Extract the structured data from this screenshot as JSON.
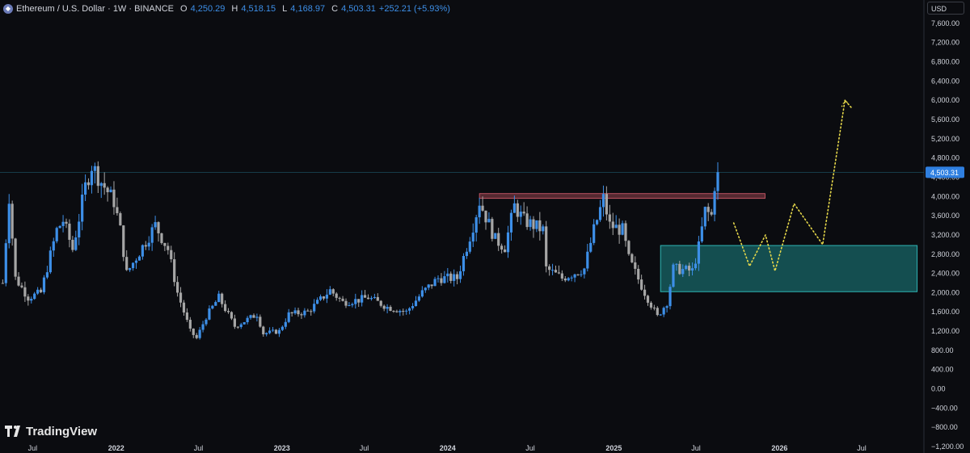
{
  "header": {
    "icon": "ethereum-icon",
    "symbol_text": "Ethereum / U.S. Dollar · 1W · BINANCE",
    "open_label": "O",
    "open_value": "4,250.29",
    "high_label": "H",
    "high_value": "4,518.15",
    "low_label": "L",
    "low_value": "4,168.97",
    "close_label": "C",
    "close_value": "4,503.31",
    "change": "+252.21 (+5.93%)"
  },
  "currency_button": "USD",
  "branding": {
    "text": "TradingView",
    "icon": "tradingview-logo-icon"
  },
  "colors": {
    "background": "#0b0c10",
    "up": "#3d8fe8",
    "down": "#a6a6a6",
    "zone": "#1e8f8f",
    "resistance": "#e06070",
    "projection": "#e6d84a",
    "price_tag": "#2f7fe0"
  },
  "chart_data": {
    "type": "candlestick",
    "symbol": "ETHUSD",
    "timeframe": "1W",
    "ylim": [
      -1200,
      7800
    ],
    "y_ticks": [
      "7,600.00",
      "7,200.00",
      "6,800.00",
      "6,400.00",
      "6,000.00",
      "5,600.00",
      "5,200.00",
      "4,800.00",
      "4,400.00",
      "4,000.00",
      "3,600.00",
      "3,200.00",
      "2,800.00",
      "2,400.00",
      "2,000.00",
      "1,600.00",
      "1,200.00",
      "800.00",
      "400.00",
      "0.00",
      "−400.00",
      "−800.00",
      "−1,200.00"
    ],
    "y_tick_values": [
      7600,
      7200,
      6800,
      6400,
      6000,
      5600,
      5200,
      4800,
      4400,
      4000,
      3600,
      3200,
      2800,
      2400,
      2000,
      1600,
      1200,
      800,
      400,
      0,
      -400,
      -800,
      -1200
    ],
    "x_ticks": [
      "Jul",
      "2022",
      "Jul",
      "2023",
      "Jul",
      "2024",
      "Jul",
      "2025",
      "Jul",
      "2026",
      "Jul"
    ],
    "x_tick_dates": [
      "2021-07-01",
      "2022-01-01",
      "2022-07-01",
      "2023-01-01",
      "2023-07-01",
      "2024-01-01",
      "2024-07-01",
      "2025-01-01",
      "2025-07-01",
      "2026-01-01",
      "2026-07-01"
    ],
    "x_range": [
      "2021-04-20",
      "2026-11-15"
    ],
    "last_price_label": "4,503.31",
    "last_price": 4503.31,
    "anchors": [
      {
        "date": "2021-04-26",
        "price": 2200
      },
      {
        "date": "2021-05-10",
        "price": 4000
      },
      {
        "date": "2021-05-24",
        "price": 2300
      },
      {
        "date": "2021-06-21",
        "price": 1900
      },
      {
        "date": "2021-07-19",
        "price": 2000
      },
      {
        "date": "2021-08-23",
        "price": 3300
      },
      {
        "date": "2021-09-06",
        "price": 3500
      },
      {
        "date": "2021-09-27",
        "price": 2900
      },
      {
        "date": "2021-10-25",
        "price": 4200
      },
      {
        "date": "2021-11-08",
        "price": 4650
      },
      {
        "date": "2021-11-29",
        "price": 4300
      },
      {
        "date": "2021-12-27",
        "price": 3900
      },
      {
        "date": "2022-01-10",
        "price": 3300
      },
      {
        "date": "2022-01-24",
        "price": 2400
      },
      {
        "date": "2022-03-28",
        "price": 3400
      },
      {
        "date": "2022-04-25",
        "price": 2900
      },
      {
        "date": "2022-05-16",
        "price": 2000
      },
      {
        "date": "2022-06-13",
        "price": 1200
      },
      {
        "date": "2022-06-27",
        "price": 1050
      },
      {
        "date": "2022-07-18",
        "price": 1500
      },
      {
        "date": "2022-08-15",
        "price": 1900
      },
      {
        "date": "2022-09-19",
        "price": 1300
      },
      {
        "date": "2022-11-07",
        "price": 1550
      },
      {
        "date": "2022-11-21",
        "price": 1150
      },
      {
        "date": "2022-12-26",
        "price": 1200
      },
      {
        "date": "2023-01-16",
        "price": 1550
      },
      {
        "date": "2023-02-27",
        "price": 1600
      },
      {
        "date": "2023-04-17",
        "price": 2050
      },
      {
        "date": "2023-05-15",
        "price": 1800
      },
      {
        "date": "2023-06-19",
        "price": 1850
      },
      {
        "date": "2023-07-10",
        "price": 1900
      },
      {
        "date": "2023-08-21",
        "price": 1700
      },
      {
        "date": "2023-10-02",
        "price": 1600
      },
      {
        "date": "2023-11-06",
        "price": 2000
      },
      {
        "date": "2023-12-11",
        "price": 2300
      },
      {
        "date": "2024-01-22",
        "price": 2300
      },
      {
        "date": "2024-02-26",
        "price": 3400
      },
      {
        "date": "2024-03-11",
        "price": 3900
      },
      {
        "date": "2024-04-15",
        "price": 3100
      },
      {
        "date": "2024-05-06",
        "price": 2950
      },
      {
        "date": "2024-05-27",
        "price": 3800
      },
      {
        "date": "2024-06-17",
        "price": 3500
      },
      {
        "date": "2024-07-29",
        "price": 3300
      },
      {
        "date": "2024-08-05",
        "price": 2500
      },
      {
        "date": "2024-09-09",
        "price": 2300
      },
      {
        "date": "2024-10-28",
        "price": 2500
      },
      {
        "date": "2024-11-18",
        "price": 3300
      },
      {
        "date": "2024-12-09",
        "price": 3950
      },
      {
        "date": "2024-12-23",
        "price": 3400
      },
      {
        "date": "2025-01-20",
        "price": 3300
      },
      {
        "date": "2025-02-03",
        "price": 2700
      },
      {
        "date": "2025-03-10",
        "price": 2000
      },
      {
        "date": "2025-04-07",
        "price": 1500
      },
      {
        "date": "2025-04-28",
        "price": 1800
      },
      {
        "date": "2025-05-12",
        "price": 2500
      },
      {
        "date": "2025-06-23",
        "price": 2450
      },
      {
        "date": "2025-07-07",
        "price": 2950
      },
      {
        "date": "2025-07-21",
        "price": 3700
      },
      {
        "date": "2025-08-04",
        "price": 3600
      },
      {
        "date": "2025-08-11",
        "price": 4250
      },
      {
        "date": "2025-08-18",
        "price": 4503
      }
    ],
    "resistance_zone": {
      "start": "2024-03-11",
      "end": "2025-11-30",
      "low": 3960,
      "high": 4060
    },
    "demand_zone": {
      "start": "2025-04-14",
      "end": "2026-10-31",
      "low": 2020,
      "high": 2980
    },
    "projection_path": [
      {
        "date": "2025-09-22",
        "price": 3450
      },
      {
        "date": "2025-10-27",
        "price": 2550
      },
      {
        "date": "2025-12-01",
        "price": 3200
      },
      {
        "date": "2025-12-22",
        "price": 2450
      },
      {
        "date": "2026-02-02",
        "price": 3850
      },
      {
        "date": "2026-04-06",
        "price": 3000
      },
      {
        "date": "2026-05-25",
        "price": 6000
      },
      {
        "date": "2026-06-08",
        "price": 5850
      }
    ]
  }
}
